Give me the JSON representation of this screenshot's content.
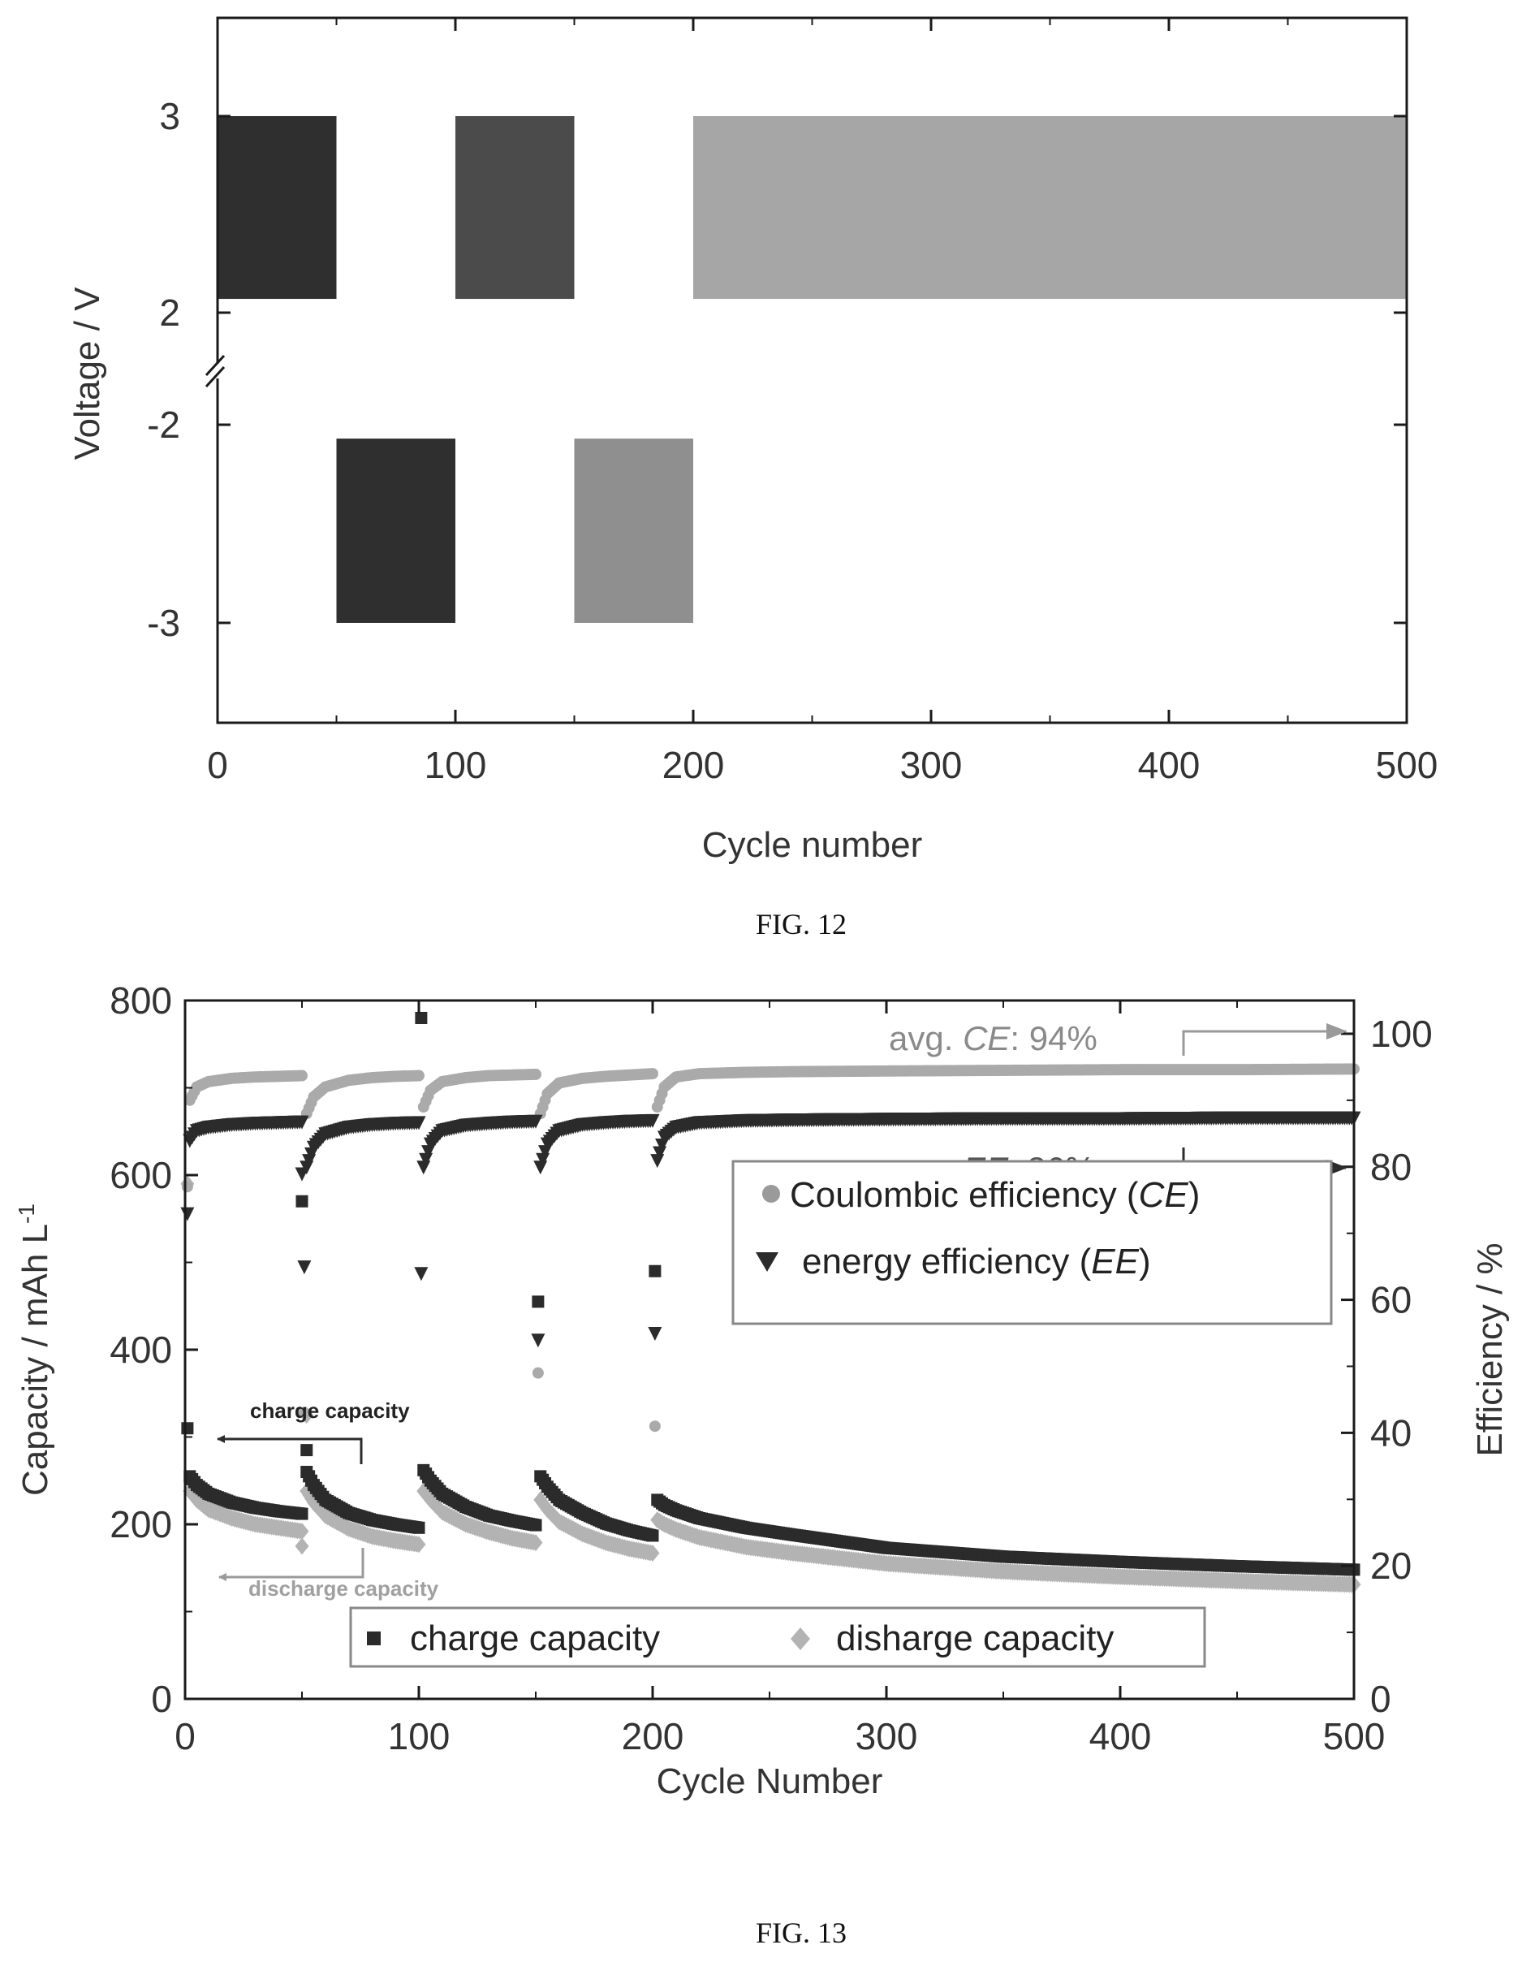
{
  "colors": {
    "axis": "#1a1a1a",
    "dark": "#2b2b2b",
    "mid": "#555555",
    "light": "#9a9a9a",
    "lighter": "#b3b3b3",
    "text_gray": "#666666"
  },
  "fig12": {
    "caption": "FIG. 12",
    "xlabel": "Cycle number",
    "ylabel": "Voltage / V",
    "x_ticks": [
      "0",
      "100",
      "200",
      "300",
      "400",
      "500"
    ],
    "y_ticks": [
      "3",
      "2",
      "-2",
      "-3"
    ]
  },
  "fig13": {
    "caption": "FIG. 13",
    "xlabel": "Cycle Number",
    "ylabel_left": "Capacity / mAh L",
    "ylabel_left_sup": "-1",
    "ylabel_right": "Efficiency / %",
    "x_ticks": [
      "0",
      "100",
      "200",
      "300",
      "400",
      "500"
    ],
    "y_left_ticks": [
      "0",
      "200",
      "400",
      "600",
      "800"
    ],
    "y_right_ticks": [
      "0",
      "20",
      "40",
      "60",
      "80",
      "100"
    ],
    "annot_ce_prefix": "avg. ",
    "annot_ce_symbol": "CE",
    "annot_ce_value": ": 94%",
    "annot_ee_prefix": "avg. ",
    "annot_ee_symbol": "EE",
    "annot_ee_value": ": 86%",
    "annot_charge": "charge capacity",
    "annot_discharge": "discharge capacity",
    "legend_top": [
      {
        "text": "Coulombic efficiency (",
        "symbol": "CE",
        "close": ")",
        "marker": "circle"
      },
      {
        "text": "energy efficiency (",
        "symbol": "EE",
        "close": ")",
        "marker": "triangle-down"
      }
    ],
    "legend_bottom": [
      {
        "text": "charge capacity",
        "marker": "square"
      },
      {
        "text": "disharge capacity",
        "marker": "diamond"
      }
    ]
  },
  "chart_data": [
    {
      "type": "area",
      "title": "",
      "xlabel": "Cycle number",
      "ylabel": "Voltage / V",
      "xlim": [
        0,
        500
      ],
      "y_axis_broken": true,
      "y_segments": [
        [
          -3.5,
          -1.5
        ],
        [
          1.7,
          3.5
        ]
      ],
      "series": [
        {
          "x_range": [
            0,
            50
          ],
          "v_min": 2.07,
          "v_max": 3.0,
          "shade": "dark"
        },
        {
          "x_range": [
            50,
            100
          ],
          "v_min": -3.0,
          "v_max": -2.07,
          "shade": "dark"
        },
        {
          "x_range": [
            100,
            150
          ],
          "v_min": 2.07,
          "v_max": 3.0,
          "shade": "mid"
        },
        {
          "x_range": [
            150,
            200
          ],
          "v_min": -3.0,
          "v_max": -2.07,
          "shade": "light"
        },
        {
          "x_range": [
            200,
            500
          ],
          "v_min": 2.07,
          "v_max": 3.0,
          "shade": "lighter"
        }
      ]
    },
    {
      "type": "scatter",
      "title": "",
      "xlabel": "Cycle Number",
      "ylabel_left": "Capacity / mAh L-1",
      "ylabel_right": "Efficiency / %",
      "xlim": [
        0,
        500
      ],
      "ylim_left": [
        0,
        800
      ],
      "ylim_right": [
        0,
        105
      ],
      "series": [
        {
          "name": "charge capacity",
          "axis": "left",
          "marker": "square",
          "segments": [
            {
              "x": [
                2,
                5,
                10,
                20,
                30,
                40,
                50
              ],
              "y": [
                255,
                245,
                235,
                225,
                219,
                215,
                212
              ]
            },
            {
              "x": [
                52,
                55,
                60,
                70,
                80,
                90,
                100
              ],
              "y": [
                260,
                245,
                228,
                213,
                205,
                200,
                196
              ]
            },
            {
              "x": [
                102,
                105,
                110,
                120,
                130,
                140,
                150
              ],
              "y": [
                262,
                250,
                235,
                220,
                210,
                204,
                199
              ]
            },
            {
              "x": [
                152,
                155,
                160,
                170,
                180,
                190,
                200
              ],
              "y": [
                255,
                243,
                228,
                213,
                201,
                193,
                187
              ]
            },
            {
              "x": [
                202,
                205,
                210,
                220,
                240,
                260,
                300,
                350,
                400,
                450,
                500
              ],
              "y": [
                228,
                222,
                216,
                207,
                196,
                188,
                173,
                163,
                157,
                152,
                148
              ]
            }
          ],
          "outliers": [
            [
              1,
              310
            ],
            [
              50,
              570
            ],
            [
              52,
              285
            ],
            [
              101,
              780
            ],
            [
              151,
              455
            ],
            [
              201,
              490
            ]
          ]
        },
        {
          "name": "disharge capacity",
          "axis": "left",
          "marker": "diamond",
          "segments": [
            {
              "x": [
                2,
                5,
                10,
                20,
                30,
                40,
                50
              ],
              "y": [
                238,
                228,
                217,
                207,
                200,
                196,
                192
              ]
            },
            {
              "x": [
                52,
                55,
                60,
                70,
                80,
                90,
                100
              ],
              "y": [
                238,
                225,
                210,
                195,
                186,
                181,
                177
              ]
            },
            {
              "x": [
                102,
                105,
                110,
                120,
                130,
                140,
                150
              ],
              "y": [
                238,
                228,
                214,
                200,
                191,
                184,
                179
              ]
            },
            {
              "x": [
                152,
                155,
                160,
                170,
                180,
                190,
                200
              ],
              "y": [
                228,
                217,
                203,
                189,
                179,
                172,
                167
              ]
            },
            {
              "x": [
                202,
                205,
                210,
                220,
                240,
                260,
                300,
                350,
                400,
                450,
                500
              ],
              "y": [
                205,
                200,
                194,
                185,
                174,
                167,
                155,
                146,
                140,
                135,
                131
              ]
            }
          ],
          "outliers": [
            [
              1,
              590
            ],
            [
              50,
              175
            ],
            [
              52,
              325
            ]
          ]
        },
        {
          "name": "Coulombic efficiency (CE)",
          "axis": "right",
          "marker": "circle",
          "segments": [
            {
              "x": [
                2,
                5,
                10,
                20,
                30,
                40,
                50
              ],
              "y": [
                90,
                92,
                92.8,
                93.3,
                93.5,
                93.6,
                93.7
              ]
            },
            {
              "x": [
                52,
                55,
                60,
                70,
                80,
                90,
                100
              ],
              "y": [
                88,
                90.5,
                92,
                93,
                93.4,
                93.6,
                93.7
              ]
            },
            {
              "x": [
                102,
                105,
                110,
                120,
                130,
                140,
                150
              ],
              "y": [
                89,
                91.5,
                92.8,
                93.4,
                93.7,
                93.8,
                93.9
              ]
            },
            {
              "x": [
                152,
                155,
                160,
                170,
                180,
                190,
                200
              ],
              "y": [
                88,
                91,
                92.6,
                93.3,
                93.6,
                93.8,
                94
              ]
            },
            {
              "x": [
                202,
                205,
                210,
                220,
                240,
                260,
                300,
                350,
                400,
                450,
                500
              ],
              "y": [
                89,
                92,
                93.5,
                94,
                94.2,
                94.3,
                94.4,
                94.5,
                94.6,
                94.6,
                94.7
              ]
            }
          ],
          "outliers": [
            [
              1,
              77
            ],
            [
              51,
              43
            ],
            [
              151,
              49
            ],
            [
              201,
              41
            ]
          ]
        },
        {
          "name": "energy efficiency (EE)",
          "axis": "right",
          "marker": "triangle-down",
          "segments": [
            {
              "x": [
                2,
                5,
                10,
                20,
                30,
                40,
                50
              ],
              "y": [
                84,
                85.5,
                86,
                86.4,
                86.6,
                86.7,
                86.8
              ]
            },
            {
              "x": [
                52,
                55,
                60,
                70,
                80,
                90,
                100
              ],
              "y": [
                80,
                83,
                85,
                86,
                86.4,
                86.6,
                86.7
              ]
            },
            {
              "x": [
                102,
                105,
                110,
                120,
                130,
                140,
                150
              ],
              "y": [
                80,
                83.5,
                85.5,
                86.3,
                86.6,
                86.8,
                86.9
              ]
            },
            {
              "x": [
                152,
                155,
                160,
                170,
                180,
                190,
                200
              ],
              "y": [
                80,
                83.5,
                85.5,
                86.4,
                86.7,
                86.9,
                87
              ]
            },
            {
              "x": [
                202,
                205,
                210,
                220,
                240,
                260,
                300,
                350,
                400,
                450,
                500
              ],
              "y": [
                81,
                84.5,
                86,
                86.7,
                87,
                87.1,
                87.2,
                87.3,
                87.3,
                87.4,
                87.4
              ]
            }
          ],
          "outliers": [
            [
              1,
              73
            ],
            [
              50,
              79
            ],
            [
              51,
              65
            ],
            [
              101,
              64
            ],
            [
              151,
              54
            ],
            [
              201,
              55
            ]
          ]
        }
      ]
    }
  ]
}
